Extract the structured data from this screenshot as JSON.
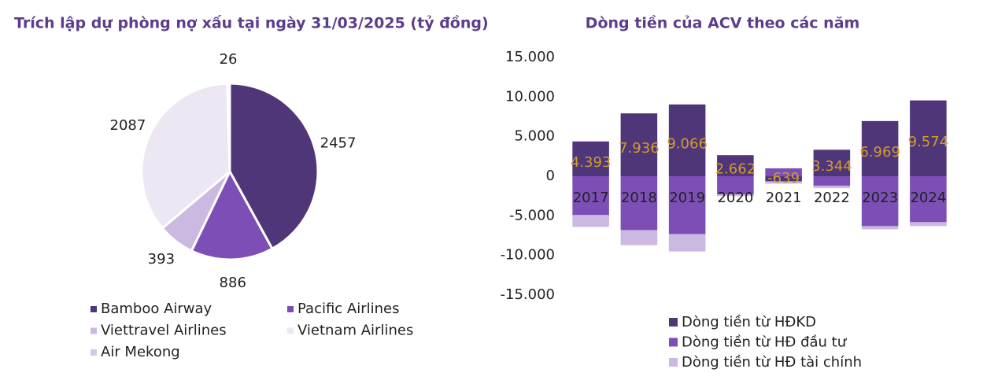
{
  "chart_data": [
    {
      "type": "pie",
      "title": "Trích lập dự phòng nợ xấu tại ngày 31/03/2025 (tỷ đồng)",
      "categories": [
        "Bamboo Airway",
        "Pacific Airlines",
        "Viettravel Airlines",
        "Vietnam Airlines",
        "Air Mekong"
      ],
      "values": [
        2457,
        886,
        393,
        2087,
        26
      ],
      "colors": [
        "#4f3679",
        "#7d4fb6",
        "#cbb9e1",
        "#ece7f3",
        "#d6c6ea"
      ]
    },
    {
      "type": "bar",
      "title": "Dòng tiền của ACV theo các năm",
      "categories": [
        "2017",
        "2018",
        "2019",
        "2020",
        "2021",
        "2022",
        "2023",
        "2024"
      ],
      "series": [
        {
          "name": "Dòng tiền từ HĐKD",
          "color": "#4f3679",
          "values": [
            4393,
            7936,
            9066,
            2662,
            -639,
            3344,
            6969,
            9574
          ],
          "value_labels": [
            "4.393",
            "7.936",
            "9.066",
            "2.662",
            "-639",
            "3.344",
            "6.969",
            "9.574"
          ]
        },
        {
          "name": "Dòng tiền từ HĐ đầu tư",
          "color": "#7d4fb6",
          "values": [
            -4900,
            -6800,
            -7300,
            -2300,
            1000,
            -1200,
            -6300,
            -5800
          ]
        },
        {
          "name": "Dòng tiền từ HĐ tài chính",
          "color": "#cbb9e1",
          "values": [
            -1500,
            -1900,
            -2200,
            -200,
            -300,
            -300,
            -400,
            -500
          ]
        }
      ],
      "stacked": true,
      "ylim": [
        -15000,
        15000
      ],
      "yticks": [
        {
          "value": -15000,
          "label": "-15.000"
        },
        {
          "value": -10000,
          "label": "-10.000"
        },
        {
          "value": -5000,
          "label": "-5.000"
        },
        0,
        {
          "value": 5000,
          "label": "5.000"
        },
        {
          "value": 10000,
          "label": "10.000"
        },
        {
          "value": 15000,
          "label": "15.000"
        }
      ],
      "value_label_color": "#d39b2a"
    }
  ]
}
